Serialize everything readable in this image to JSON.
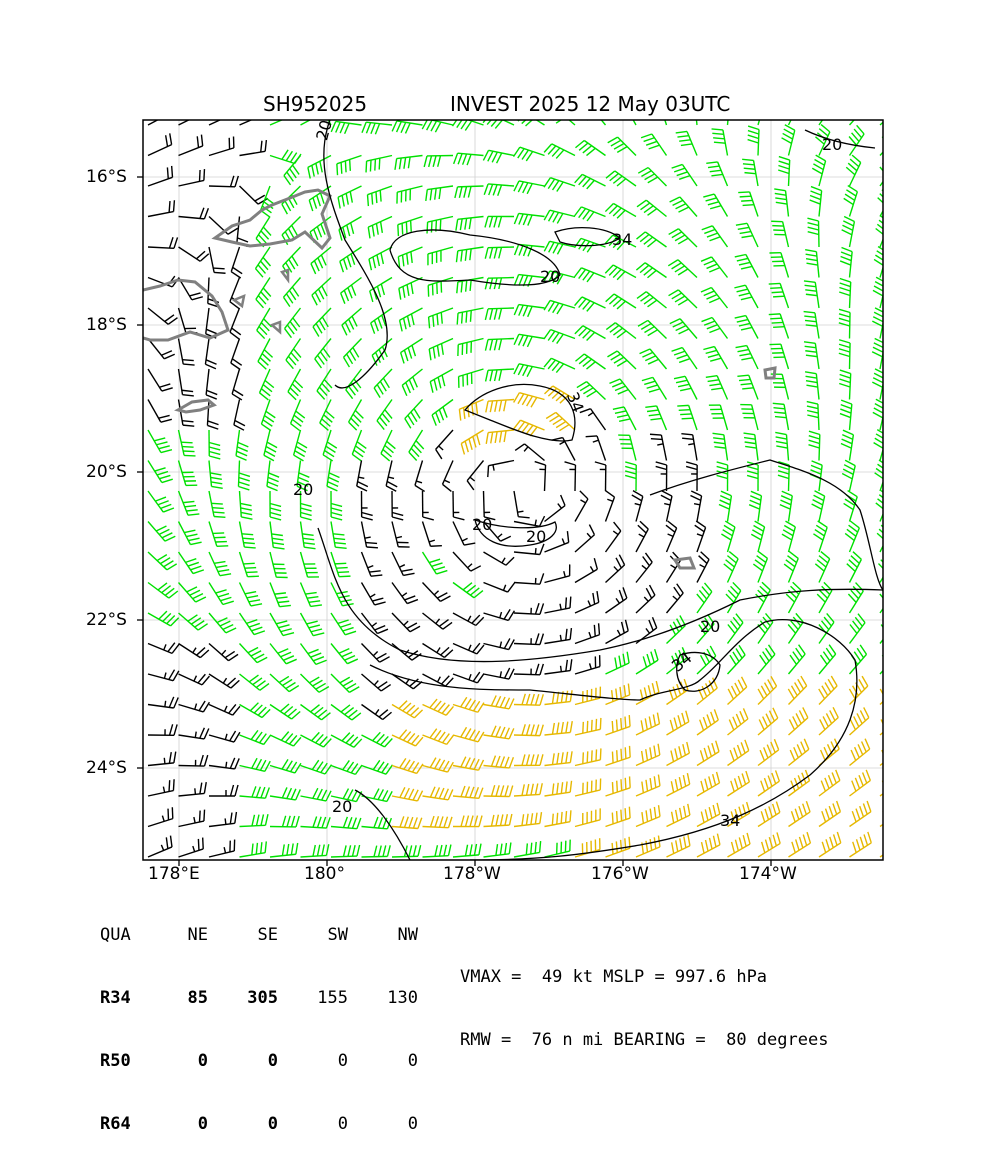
{
  "header": {
    "storm_id": "SH952025",
    "storm_title": "INVEST 2025 12 May 03UTC"
  },
  "map": {
    "lat_labels": [
      "16°S",
      "18°S",
      "20°S",
      "22°S",
      "24°S"
    ],
    "lon_labels": [
      "178°E",
      "180°",
      "178°W",
      "176°W",
      "174°W"
    ],
    "contour_labels": [
      "20",
      "20",
      "20",
      "20",
      "20",
      "20",
      "20",
      "20",
      "34",
      "34",
      "34",
      "34"
    ],
    "colors": {
      "barb_below_34": "#000000",
      "barb_34_to_50": "#00e000",
      "barb_50_plus": "#e6b800",
      "coastline": "#808080",
      "contour": "#000000",
      "grid": "#d0d0d0"
    }
  },
  "quadrants": {
    "header": [
      "QUA",
      "NE",
      "SE",
      "SW",
      "NW"
    ],
    "rows": [
      {
        "label": "R34",
        "values": [
          "85",
          "305",
          "155",
          "130"
        ]
      },
      {
        "label": "R50",
        "values": [
          "0",
          "0",
          "0",
          "0"
        ]
      },
      {
        "label": "R64",
        "values": [
          "0",
          "0",
          "0",
          "0"
        ]
      }
    ]
  },
  "summary": {
    "line1": "VMAX =  49 kt MSLP = 997.6 hPa",
    "line2": "RMW =  76 n mi BEARING =  80 degrees"
  }
}
